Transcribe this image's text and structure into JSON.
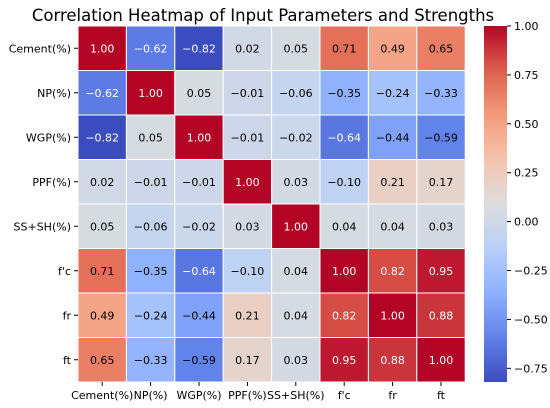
{
  "chart_data": {
    "type": "heatmap",
    "title": "Correlation Heatmap of Input Parameters and Strengths",
    "xlabel": "",
    "ylabel": "",
    "x_labels": [
      "Cement(%)",
      "NP(%)",
      "WGP(%)",
      "PPF(%)",
      "SS+SH(%)",
      "f'c",
      "fr",
      "ft"
    ],
    "y_labels": [
      "Cement(%)",
      "NP(%)",
      "WGP(%)",
      "PPF(%)",
      "SS+SH(%)",
      "f'c",
      "fr",
      "ft"
    ],
    "values": [
      [
        1.0,
        -0.62,
        -0.82,
        0.02,
        0.05,
        0.71,
        0.49,
        0.65
      ],
      [
        -0.62,
        1.0,
        0.05,
        -0.01,
        -0.06,
        -0.35,
        -0.24,
        -0.33
      ],
      [
        -0.82,
        0.05,
        1.0,
        -0.01,
        -0.02,
        -0.64,
        -0.44,
        -0.59
      ],
      [
        0.02,
        -0.01,
        -0.01,
        1.0,
        0.03,
        -0.1,
        0.21,
        0.17
      ],
      [
        0.05,
        -0.06,
        -0.02,
        0.03,
        1.0,
        0.04,
        0.04,
        0.03
      ],
      [
        0.71,
        -0.35,
        -0.64,
        -0.1,
        0.04,
        1.0,
        0.82,
        0.95
      ],
      [
        0.49,
        -0.24,
        -0.44,
        0.21,
        0.04,
        0.82,
        1.0,
        0.88
      ],
      [
        0.65,
        -0.33,
        -0.59,
        0.17,
        0.03,
        0.95,
        0.88,
        1.0
      ]
    ],
    "colorscale": "coolwarm",
    "vmin": -0.82,
    "vmax": 1.0,
    "colorbar_ticks": [
      1.0,
      0.75,
      0.5,
      0.25,
      0.0,
      -0.25,
      -0.5,
      -0.75
    ],
    "colorbar_tick_labels": [
      "1.00",
      "0.75",
      "0.50",
      "0.25",
      "0.00",
      "−0.25",
      "−0.50",
      "−0.75"
    ],
    "annotated": true,
    "value_format": "2dp",
    "grid": false,
    "legend": "colorbar-right"
  }
}
